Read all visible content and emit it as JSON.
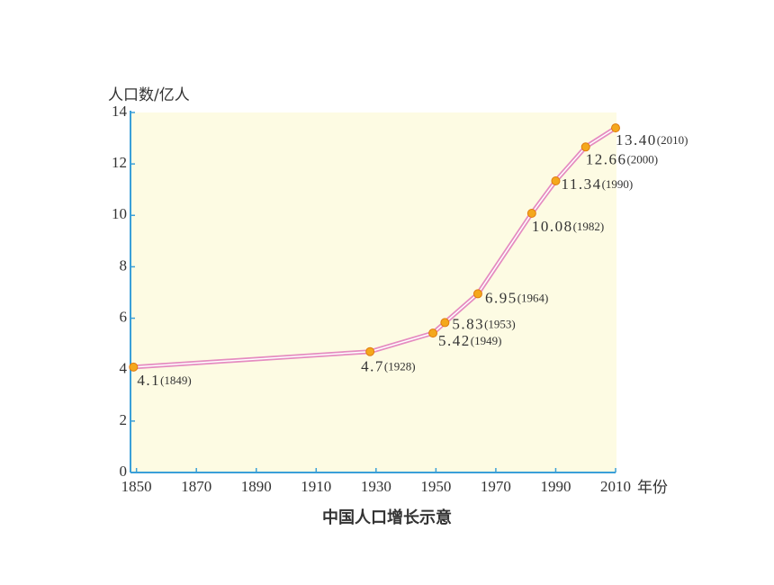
{
  "chart_data": {
    "type": "line",
    "title": "中国人口增长示意",
    "y_label": "人口数/亿人",
    "x_label": "年份",
    "x": [
      1849,
      1928,
      1949,
      1953,
      1964,
      1982,
      1990,
      2000,
      2010
    ],
    "x_labels": [
      "(1849)",
      "(1928)",
      "(1949)",
      "(1953)",
      "(1964)",
      "(1982)",
      "(1990)",
      "(2000)",
      "(2010)"
    ],
    "values": [
      4.1,
      4.7,
      5.42,
      5.83,
      6.95,
      10.08,
      11.34,
      12.66,
      13.4
    ],
    "value_labels": [
      "4.1",
      "4.7",
      "5.42",
      "5.83",
      "6.95",
      "10.08",
      "11.34",
      "12.66",
      "13.40"
    ],
    "color": "#e58cc0",
    "marker_color": "#f4a81c",
    "xlim": [
      1848,
      2010
    ],
    "xticks": [
      1850,
      1870,
      1890,
      1910,
      1930,
      1950,
      1970,
      1990,
      2010
    ],
    "ylim": [
      0,
      14
    ],
    "yticks": [
      0,
      2,
      4,
      6,
      8,
      10,
      12,
      14
    ]
  }
}
